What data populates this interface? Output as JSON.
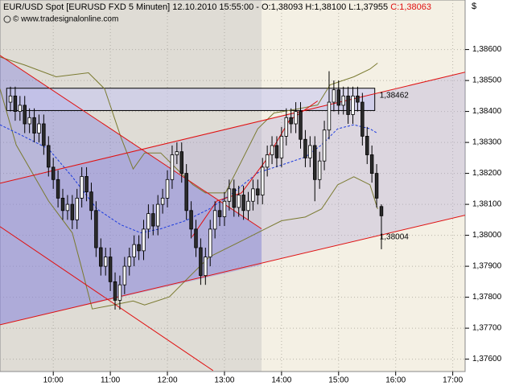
{
  "chart_data": {
    "type": "candlestick",
    "title": [
      {
        "text": "EUR/USD Spot [EURUSD FXD  5 Minuten] 12.10.2010 15:55:00 - O:1,38093 H:1,38100 L:1,37955",
        "color": "#000000"
      },
      {
        "text": "C:1,38063",
        "color": "#e01010"
      }
    ],
    "copyright": "© www.tradesignalonline.com",
    "currency": "$",
    "up_color": "#ffffff",
    "down_color": "#2b2b2b",
    "x": [
      555,
      560,
      565,
      570,
      575,
      580,
      585,
      590,
      595,
      600,
      605,
      610,
      615,
      620,
      625,
      630,
      635,
      640,
      645,
      650,
      655,
      660,
      665,
      670,
      675,
      680,
      685,
      690,
      695,
      700,
      705,
      710,
      715,
      720,
      725,
      730,
      735,
      740,
      745,
      750,
      755,
      760,
      765,
      770,
      775,
      780,
      785,
      790,
      795,
      800,
      805,
      810,
      815,
      820,
      825,
      830,
      835,
      840,
      845,
      850,
      855,
      860,
      865,
      870,
      875,
      880,
      885,
      890,
      895,
      900,
      905,
      910,
      915,
      920,
      925,
      930,
      935,
      940,
      945
    ],
    "open": [
      1.3843,
      1.3845,
      1.384,
      1.3842,
      1.3836,
      1.3838,
      1.3833,
      1.3836,
      1.3829,
      1.3822,
      1.3818,
      1.3812,
      1.3808,
      1.381,
      1.3805,
      1.3812,
      1.3819,
      1.3814,
      1.3808,
      1.3796,
      1.379,
      1.3793,
      1.3785,
      1.3779,
      1.3784,
      1.379,
      1.3793,
      1.3797,
      1.3795,
      1.3802,
      1.3807,
      1.3803,
      1.381,
      1.3812,
      1.3818,
      1.3826,
      1.3827,
      1.382,
      1.3808,
      1.3802,
      1.3796,
      1.3787,
      1.3793,
      1.3802,
      1.3808,
      1.3806,
      1.3811,
      1.3815,
      1.3809,
      1.3813,
      1.3808,
      1.3811,
      1.3815,
      1.3813,
      1.3822,
      1.3826,
      1.3829,
      1.3825,
      1.3832,
      1.3838,
      1.3836,
      1.384,
      1.3831,
      1.3825,
      1.3829,
      1.3818,
      1.3824,
      1.3834,
      1.3843,
      1.3847,
      1.3842,
      1.3845,
      1.3839,
      1.3845,
      1.3843,
      1.3832,
      1.3826,
      1.382,
      1.38093
    ],
    "high": [
      1.3848,
      1.3848,
      1.3845,
      1.3845,
      1.3841,
      1.3841,
      1.3839,
      1.3839,
      1.3832,
      1.3825,
      1.3821,
      1.3815,
      1.3813,
      1.3813,
      1.3815,
      1.3822,
      1.3822,
      1.3817,
      1.3811,
      1.3799,
      1.3796,
      1.3796,
      1.3788,
      1.3787,
      1.3793,
      1.3796,
      1.38,
      1.38,
      1.3805,
      1.381,
      1.381,
      1.3813,
      1.3815,
      1.3821,
      1.3829,
      1.383,
      1.383,
      1.3823,
      1.3811,
      1.3805,
      1.3799,
      1.3796,
      1.3805,
      1.3811,
      1.3811,
      1.3814,
      1.3818,
      1.3818,
      1.3816,
      1.3816,
      1.3814,
      1.3818,
      1.3818,
      1.3825,
      1.3829,
      1.3832,
      1.3832,
      1.3835,
      1.3841,
      1.3841,
      1.3843,
      1.3843,
      1.3834,
      1.3832,
      1.3832,
      1.3827,
      1.3837,
      1.3853,
      1.385,
      1.385,
      1.3848,
      1.3848,
      1.3848,
      1.3848,
      1.3846,
      1.3835,
      1.3829,
      1.3823,
      1.381
    ],
    "low": [
      1.384,
      1.3837,
      1.3837,
      1.3833,
      1.3833,
      1.383,
      1.383,
      1.3826,
      1.3819,
      1.3815,
      1.3809,
      1.3805,
      1.3805,
      1.3802,
      1.3802,
      1.3809,
      1.3811,
      1.3805,
      1.3793,
      1.3787,
      1.3787,
      1.3782,
      1.3776,
      1.3776,
      1.3781,
      1.3787,
      1.379,
      1.3792,
      1.3792,
      1.3799,
      1.38,
      1.38,
      1.3807,
      1.3809,
      1.3815,
      1.3823,
      1.3817,
      1.3805,
      1.3799,
      1.3793,
      1.3784,
      1.3784,
      1.379,
      1.3799,
      1.3803,
      1.3803,
      1.3808,
      1.3806,
      1.3806,
      1.3805,
      1.3805,
      1.3808,
      1.381,
      1.381,
      1.3819,
      1.3823,
      1.3822,
      1.3822,
      1.3829,
      1.3833,
      1.3833,
      1.3828,
      1.3822,
      1.3822,
      1.3811,
      1.3815,
      1.3821,
      1.3831,
      1.384,
      1.3839,
      1.3839,
      1.3836,
      1.3836,
      1.384,
      1.3829,
      1.3823,
      1.3817,
      1.3809,
      1.37955
    ],
    "close": [
      1.3845,
      1.384,
      1.3842,
      1.3836,
      1.3838,
      1.3833,
      1.3836,
      1.3829,
      1.3822,
      1.3818,
      1.3812,
      1.3808,
      1.381,
      1.3805,
      1.3812,
      1.3819,
      1.3814,
      1.3808,
      1.3796,
      1.379,
      1.3793,
      1.3785,
      1.3779,
      1.3784,
      1.379,
      1.3793,
      1.3797,
      1.3795,
      1.3802,
      1.3807,
      1.3803,
      1.381,
      1.3812,
      1.3818,
      1.3826,
      1.3827,
      1.382,
      1.3808,
      1.3802,
      1.3796,
      1.3787,
      1.3793,
      1.3802,
      1.3808,
      1.3806,
      1.3811,
      1.3815,
      1.3809,
      1.3813,
      1.3808,
      1.3811,
      1.3815,
      1.3813,
      1.3822,
      1.3826,
      1.3829,
      1.3825,
      1.3832,
      1.3838,
      1.3836,
      1.384,
      1.3831,
      1.3825,
      1.3829,
      1.3818,
      1.3824,
      1.3834,
      1.3843,
      1.3847,
      1.3842,
      1.3845,
      1.3839,
      1.3845,
      1.3843,
      1.3832,
      1.3826,
      1.382,
      1.3812,
      1.38063
    ],
    "xlim": [
      544,
      1033
    ],
    "xticks": [
      {
        "value": 600,
        "label": "10:00"
      },
      {
        "value": 660,
        "label": "11:00"
      },
      {
        "value": 720,
        "label": "12:00"
      },
      {
        "value": 780,
        "label": "13:00"
      },
      {
        "value": 840,
        "label": "14:00"
      },
      {
        "value": 900,
        "label": "15:00"
      },
      {
        "value": 960,
        "label": "16:00"
      },
      {
        "value": 1020,
        "label": "17:00"
      }
    ],
    "ylim": [
      1.3756,
      1.3876
    ],
    "yticks": [
      {
        "value": 1.376,
        "label": "1,37600"
      },
      {
        "value": 1.377,
        "label": "1,37700"
      },
      {
        "value": 1.378,
        "label": "1,37800"
      },
      {
        "value": 1.379,
        "label": "1,37900"
      },
      {
        "value": 1.38,
        "label": "1,38000"
      },
      {
        "value": 1.381,
        "label": "1,38100"
      },
      {
        "value": 1.382,
        "label": "1,38200"
      },
      {
        "value": 1.383,
        "label": "1,38300"
      },
      {
        "value": 1.384,
        "label": "1,38400"
      },
      {
        "value": 1.385,
        "label": "1,38500"
      },
      {
        "value": 1.386,
        "label": "1,38600"
      }
    ],
    "grid": true,
    "regions": [
      {
        "color": "rgba(150,150,160,0.22)",
        "x": [
          544,
          819,
          819,
          544
        ],
        "y": [
          1.3876,
          1.3876,
          1.3756,
          1.3756
        ]
      },
      {
        "color": "rgba(175,165,215,0.35)",
        "x": [
          544,
          1033,
          1033,
          544
        ],
        "y": [
          1.38168,
          1.38527,
          1.38065,
          1.37711
        ]
      },
      {
        "color": "rgba(110,110,225,0.33)",
        "x": [
          544,
          819,
          819,
          544
        ],
        "y": [
          1.38581,
          1.38021,
          1.37904,
          1.37711
        ]
      }
    ],
    "box": {
      "color": "rgba(200,200,240,0.6)",
      "x": [
        551,
        938
      ],
      "y": [
        1.38403,
        1.38475
      ]
    },
    "lines": [
      {
        "color": "#7a7a30",
        "dash": false,
        "x": [
          544,
          570,
          603,
          637,
          654,
          671,
          684,
          696,
          713,
          730,
          747,
          760,
          781,
          798,
          815,
          832,
          857,
          878,
          891,
          916,
          933,
          941
        ],
        "y": [
          1.38576,
          1.3855,
          1.38512,
          1.38525,
          1.38473,
          1.38318,
          1.38214,
          1.38266,
          1.38266,
          1.38214,
          1.38163,
          1.38137,
          1.38137,
          1.3824,
          1.38344,
          1.38395,
          1.38408,
          1.38421,
          1.38486,
          1.38512,
          1.38537,
          1.38556
        ]
      },
      {
        "color": "#7a7a30",
        "dash": false,
        "x": [
          544,
          561,
          595,
          620,
          629,
          641,
          663,
          684,
          696,
          722,
          743,
          764,
          798,
          823,
          840,
          865,
          882,
          899,
          916,
          933,
          941
        ],
        "y": [
          1.38473,
          1.38292,
          1.38111,
          1.38008,
          1.37904,
          1.37762,
          1.37775,
          1.37788,
          1.37775,
          1.37801,
          1.37866,
          1.3793,
          1.37982,
          1.38021,
          1.38047,
          1.38059,
          1.38085,
          1.38163,
          1.38189,
          1.38163,
          1.38085
        ]
      },
      {
        "color": "#1a3adf",
        "dash": true,
        "x": [
          544,
          570,
          595,
          620,
          646,
          671,
          692,
          713,
          739,
          764,
          789,
          815,
          840,
          865,
          882,
          899,
          916,
          933,
          940
        ],
        "y": [
          1.38357,
          1.38318,
          1.38279,
          1.38189,
          1.38085,
          1.38034,
          1.38008,
          1.38021,
          1.38047,
          1.38085,
          1.38137,
          1.38202,
          1.38227,
          1.38253,
          1.38292,
          1.38344,
          1.38357,
          1.38344,
          1.38331
        ]
      },
      {
        "color": "#e01010",
        "dash": false,
        "x": [
          544,
          1033
        ],
        "y": [
          1.38168,
          1.38527
        ]
      },
      {
        "color": "#e01010",
        "dash": false,
        "x": [
          544,
          1033
        ],
        "y": [
          1.37711,
          1.38065
        ]
      },
      {
        "color": "#e01010",
        "dash": false,
        "x": [
          544,
          819
        ],
        "y": [
          1.38581,
          1.38021
        ]
      },
      {
        "color": "#e01010",
        "dash": false,
        "x": [
          544,
          768
        ],
        "y": [
          1.38028,
          1.37563
        ]
      },
      {
        "color": "#e01010",
        "dash": false,
        "x": [
          746,
          772,
          798,
          823,
          848,
          878
        ],
        "y": [
          1.37995,
          1.38111,
          1.38137,
          1.3824,
          1.3837,
          1.38434
        ]
      }
    ],
    "annotations": [
      {
        "value": 1.38462,
        "label": "1,38462",
        "color": "#e01010"
      },
      {
        "value": 1.38004,
        "label": "1,38004",
        "color": "#e01010"
      }
    ]
  }
}
